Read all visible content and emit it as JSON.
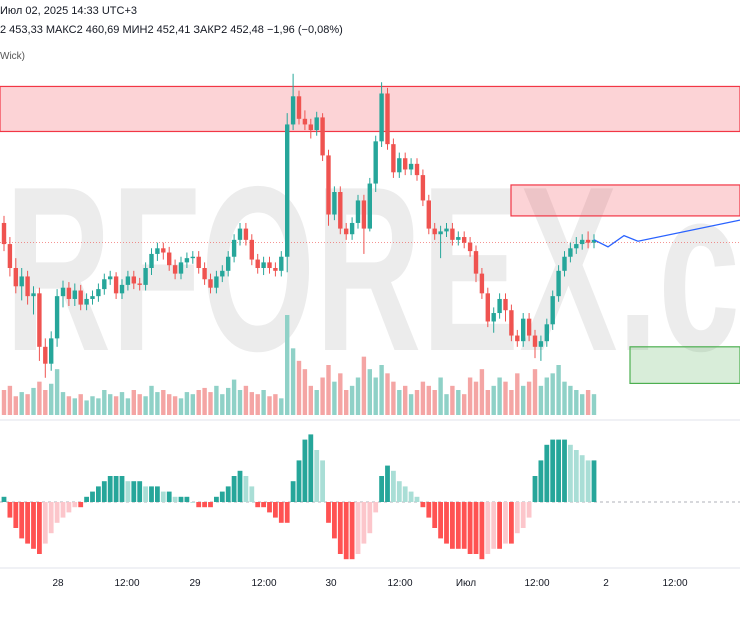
{
  "header": {
    "line1": "Июл 02, 2025 14:33 UTC+3",
    "line2": "2 453,33  МАКС2 460,69  МИН2 452,41  ЗАКР2 452,48  −1,96 (−0,08%)",
    "indicator_label": "Wick)"
  },
  "watermark": "RFOREX.c",
  "colors": {
    "up": "#26a69a",
    "down": "#ef5350",
    "volume_up": "#8fd1c7",
    "volume_down": "#f4a5a4",
    "hist_up_strong": "#26a69a",
    "hist_up_weak": "#a9ded6",
    "hist_down_strong": "#ff5252",
    "hist_down_weak": "#fcc6cb",
    "zone_red": "#f23645",
    "zone_green": "#4caf50",
    "projection": "#2962ff"
  },
  "chart_data": {
    "type": "candlestick",
    "x_ticks": [
      "28",
      "12:00",
      "29",
      "12:00",
      "30",
      "12:00",
      "Июл",
      "12:00",
      "2",
      "12:00"
    ],
    "price_range": [
      2210,
      2480
    ],
    "zones": [
      {
        "kind": "supply",
        "from": 2415,
        "to": 2447
      },
      {
        "kind": "supply",
        "from": 2355,
        "to": 2377
      },
      {
        "kind": "demand",
        "from": 2236,
        "to": 2262
      }
    ],
    "current_price": 2336,
    "candles": [
      [
        2350,
        2335,
        2355,
        2330
      ],
      [
        2335,
        2318,
        2340,
        2312
      ],
      [
        2318,
        2305,
        2325,
        2300
      ],
      [
        2305,
        2312,
        2318,
        2295
      ],
      [
        2312,
        2298,
        2316,
        2292
      ],
      [
        2298,
        2300,
        2305,
        2285
      ],
      [
        2300,
        2262,
        2304,
        2252
      ],
      [
        2262,
        2250,
        2268,
        2240
      ],
      [
        2250,
        2268,
        2273,
        2245
      ],
      [
        2268,
        2298,
        2303,
        2262
      ],
      [
        2298,
        2304,
        2309,
        2290
      ],
      [
        2304,
        2296,
        2308,
        2291
      ],
      [
        2296,
        2302,
        2307,
        2291
      ],
      [
        2302,
        2292,
        2306,
        2288
      ],
      [
        2292,
        2296,
        2300,
        2288
      ],
      [
        2296,
        2298,
        2302,
        2292
      ],
      [
        2298,
        2303,
        2307,
        2294
      ],
      [
        2303,
        2310,
        2314,
        2299
      ],
      [
        2310,
        2312,
        2316,
        2306
      ],
      [
        2312,
        2300,
        2315,
        2296
      ],
      [
        2300,
        2306,
        2310,
        2296
      ],
      [
        2306,
        2312,
        2316,
        2302
      ],
      [
        2312,
        2307,
        2316,
        2303
      ],
      [
        2307,
        2306,
        2311,
        2302
      ],
      [
        2306,
        2318,
        2322,
        2302
      ],
      [
        2318,
        2328,
        2332,
        2313
      ],
      [
        2328,
        2332,
        2336,
        2323
      ],
      [
        2332,
        2329,
        2336,
        2324
      ],
      [
        2329,
        2320,
        2333,
        2316
      ],
      [
        2320,
        2314,
        2324,
        2310
      ],
      [
        2314,
        2322,
        2326,
        2310
      ],
      [
        2322,
        2325,
        2329,
        2318
      ],
      [
        2325,
        2326,
        2330,
        2321
      ],
      [
        2326,
        2318,
        2330,
        2314
      ],
      [
        2318,
        2310,
        2322,
        2306
      ],
      [
        2310,
        2304,
        2314,
        2300
      ],
      [
        2304,
        2312,
        2316,
        2300
      ],
      [
        2312,
        2316,
        2320,
        2308
      ],
      [
        2316,
        2326,
        2330,
        2312
      ],
      [
        2326,
        2338,
        2342,
        2322
      ],
      [
        2338,
        2346,
        2350,
        2334
      ],
      [
        2346,
        2338,
        2350,
        2334
      ],
      [
        2338,
        2324,
        2342,
        2320
      ],
      [
        2324,
        2318,
        2328,
        2314
      ],
      [
        2318,
        2322,
        2326,
        2313
      ],
      [
        2322,
        2318,
        2326,
        2314
      ],
      [
        2318,
        2316,
        2322,
        2312
      ],
      [
        2316,
        2326,
        2330,
        2312
      ],
      [
        2326,
        2420,
        2428,
        2315
      ],
      [
        2420,
        2440,
        2456,
        2416
      ],
      [
        2440,
        2424,
        2444,
        2420
      ],
      [
        2424,
        2420,
        2430,
        2416
      ],
      [
        2420,
        2416,
        2424,
        2410
      ],
      [
        2416,
        2425,
        2429,
        2412
      ],
      [
        2425,
        2398,
        2428,
        2394
      ],
      [
        2398,
        2356,
        2402,
        2348
      ],
      [
        2356,
        2372,
        2376,
        2352
      ],
      [
        2372,
        2346,
        2376,
        2342
      ],
      [
        2346,
        2342,
        2350,
        2338
      ],
      [
        2342,
        2350,
        2354,
        2338
      ],
      [
        2350,
        2366,
        2370,
        2346
      ],
      [
        2366,
        2346,
        2370,
        2328
      ],
      [
        2346,
        2378,
        2382,
        2344
      ],
      [
        2378,
        2408,
        2412,
        2372
      ],
      [
        2408,
        2442,
        2450,
        2404
      ],
      [
        2442,
        2406,
        2446,
        2402
      ],
      [
        2406,
        2386,
        2410,
        2382
      ],
      [
        2386,
        2396,
        2400,
        2382
      ],
      [
        2396,
        2388,
        2400,
        2384
      ],
      [
        2388,
        2392,
        2396,
        2384
      ],
      [
        2392,
        2384,
        2396,
        2380
      ],
      [
        2384,
        2366,
        2388,
        2362
      ],
      [
        2366,
        2346,
        2370,
        2342
      ],
      [
        2346,
        2342,
        2350,
        2338
      ],
      [
        2342,
        2344,
        2348,
        2325
      ],
      [
        2344,
        2346,
        2350,
        2340
      ],
      [
        2346,
        2338,
        2350,
        2334
      ],
      [
        2338,
        2340,
        2344,
        2334
      ],
      [
        2340,
        2336,
        2344,
        2332
      ],
      [
        2336,
        2330,
        2340,
        2326
      ],
      [
        2330,
        2314,
        2334,
        2308
      ],
      [
        2314,
        2300,
        2318,
        2296
      ],
      [
        2300,
        2280,
        2304,
        2276
      ],
      [
        2280,
        2286,
        2290,
        2272
      ],
      [
        2286,
        2296,
        2300,
        2282
      ],
      [
        2296,
        2288,
        2300,
        2280
      ],
      [
        2288,
        2270,
        2292,
        2266
      ],
      [
        2270,
        2266,
        2274,
        2262
      ],
      [
        2266,
        2282,
        2286,
        2262
      ],
      [
        2282,
        2270,
        2286,
        2266
      ],
      [
        2270,
        2262,
        2274,
        2254
      ],
      [
        2262,
        2266,
        2270,
        2252
      ],
      [
        2266,
        2278,
        2282,
        2262
      ],
      [
        2278,
        2298,
        2302,
        2274
      ],
      [
        2298,
        2316,
        2320,
        2294
      ],
      [
        2316,
        2326,
        2330,
        2312
      ],
      [
        2326,
        2332,
        2336,
        2322
      ],
      [
        2332,
        2335,
        2340,
        2328
      ],
      [
        2335,
        2338,
        2342,
        2331
      ],
      [
        2338,
        2336,
        2344,
        2332
      ],
      [
        2336,
        2338,
        2342,
        2332
      ]
    ],
    "volumes": [
      12,
      14,
      9,
      11,
      10,
      13,
      16,
      12,
      15,
      22,
      11,
      9,
      8,
      10,
      7,
      9,
      8,
      12,
      10,
      9,
      11,
      8,
      12,
      10,
      9,
      14,
      11,
      12,
      10,
      9,
      8,
      11,
      10,
      12,
      13,
      11,
      14,
      10,
      13,
      17,
      12,
      14,
      11,
      10,
      12,
      9,
      10,
      8,
      48,
      32,
      26,
      22,
      14,
      12,
      18,
      24,
      16,
      20,
      12,
      14,
      18,
      28,
      22,
      18,
      24,
      20,
      16,
      12,
      14,
      10,
      12,
      16,
      14,
      12,
      18,
      10,
      14,
      12,
      10,
      18,
      16,
      22,
      12,
      14,
      18,
      16,
      12,
      20,
      14,
      16,
      22,
      14,
      18,
      20,
      24,
      16,
      14,
      12,
      10,
      12,
      10
    ],
    "oscillator": [
      1,
      -3,
      -5,
      -7,
      -8,
      -9,
      -10,
      -8,
      -6,
      -4,
      -3,
      -2,
      -1,
      -1,
      1,
      2,
      3,
      4,
      5,
      5,
      5,
      4,
      4,
      4,
      3,
      3,
      3,
      2,
      2,
      1,
      1,
      1,
      0,
      -1,
      -1,
      -1,
      1,
      2,
      3,
      5,
      6,
      5,
      3,
      -1,
      -1,
      -2,
      -3,
      -4,
      -4,
      4,
      8,
      12,
      13,
      10,
      8,
      -4,
      -7,
      -10,
      -11,
      -11,
      -10,
      -8,
      -6,
      -2,
      5,
      7,
      6,
      4,
      3,
      2,
      1,
      -1,
      -3,
      -5,
      -7,
      -8,
      -9,
      -9,
      -9,
      -10,
      -10,
      -11,
      -10,
      -9,
      -9,
      -8,
      -8,
      -6,
      -5,
      -3,
      5,
      8,
      11,
      12,
      12,
      12,
      11,
      10,
      9,
      8,
      8
    ]
  }
}
